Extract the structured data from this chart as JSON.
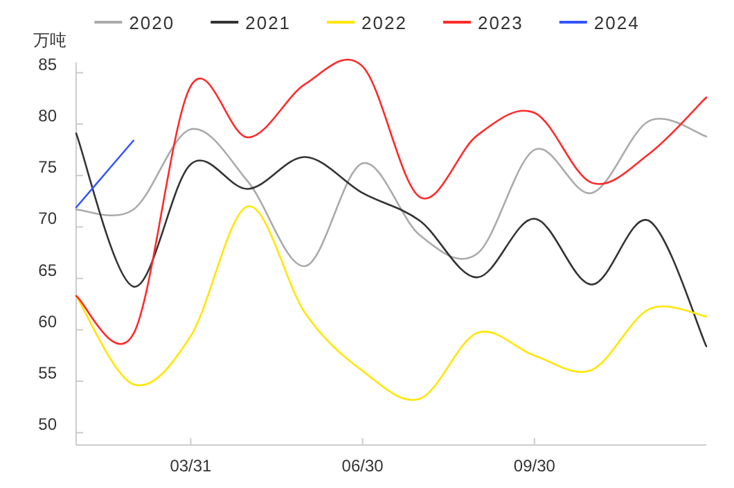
{
  "chart_data": {
    "type": "line",
    "ylabel": "万吨",
    "categories": [
      null,
      null,
      "03/31",
      null,
      null,
      "06/30",
      null,
      null,
      "09/30",
      null,
      null,
      null
    ],
    "ylim": [
      48.8,
      86
    ],
    "yticks": [
      50,
      55,
      60,
      65,
      70,
      75,
      80,
      85
    ],
    "grid": false,
    "legend": "top",
    "marker": "none",
    "line_style": "solid",
    "series": [
      {
        "name": "2020",
        "color": "#aaaaaa",
        "values": [
          71.7,
          71.7,
          79.5,
          74.4,
          66.2,
          76.2,
          69.2,
          67.4,
          77.5,
          73.3,
          80.3,
          78.8
        ]
      },
      {
        "name": "2021",
        "color": "#333333",
        "values": [
          79.1,
          64.2,
          76.1,
          73.7,
          76.8,
          73.3,
          70.6,
          65.1,
          70.8,
          64.4,
          70.6,
          58.4
        ]
      },
      {
        "name": "2022",
        "color": "#ffe600",
        "values": [
          63.3,
          54.7,
          59.4,
          72.0,
          61.6,
          56.0,
          53.3,
          59.7,
          57.5,
          56.1,
          62.0,
          61.3
        ]
      },
      {
        "name": "2023",
        "color": "#ff2a2a",
        "values": [
          63.3,
          59.6,
          83.7,
          78.7,
          83.9,
          85.6,
          72.9,
          78.9,
          81.1,
          74.3,
          77.1,
          82.6
        ]
      },
      {
        "name": "2024",
        "color": "#3355ff",
        "values": [
          71.9,
          78.4,
          null,
          null,
          null,
          null,
          null,
          null,
          null,
          null,
          null,
          null
        ]
      }
    ]
  }
}
